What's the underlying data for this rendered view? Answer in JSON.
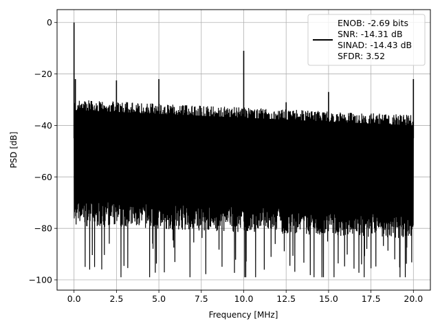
{
  "chart_data": {
    "type": "line",
    "title": "",
    "xlabel": "Frequency [MHz]",
    "ylabel": "PSD [dB]",
    "xlim": [
      -1.0,
      21.0
    ],
    "ylim": [
      -104,
      5
    ],
    "xticks": [
      0.0,
      2.5,
      5.0,
      7.5,
      10.0,
      12.5,
      15.0,
      17.5,
      20.0
    ],
    "xtick_labels": [
      "0.0",
      "2.5",
      "5.0",
      "7.5",
      "10.0",
      "12.5",
      "15.0",
      "17.5",
      "20.0"
    ],
    "yticks": [
      0,
      -20,
      -40,
      -60,
      -80,
      -100
    ],
    "ytick_labels": [
      "0",
      "−20",
      "−40",
      "−60",
      "−80",
      "−100"
    ],
    "grid": true,
    "legend": {
      "placement": "top-right",
      "lines": [
        "ENOB: -2.69 bits",
        "SNR: -14.31 dB",
        "SINAD: -14.43 dB",
        "SFDR: 3.52"
      ]
    },
    "series": [
      {
        "color": "#000000",
        "noise_floor": {
          "x_range": [
            0.0,
            20.0
          ],
          "upper_envelope_db": [
            -30,
            -36
          ],
          "lower_envelope_db": [
            -75,
            -80
          ],
          "min_db": -99
        },
        "peaks": [
          {
            "x": 0.0,
            "y": 0.0
          },
          {
            "x": 0.08,
            "y": -22.0
          },
          {
            "x": 2.5,
            "y": -22.5
          },
          {
            "x": 5.0,
            "y": -22.0
          },
          {
            "x": 10.0,
            "y": -11.0
          },
          {
            "x": 12.5,
            "y": -31.0
          },
          {
            "x": 15.0,
            "y": -27.0
          },
          {
            "x": 20.0,
            "y": -22.0
          }
        ]
      }
    ]
  }
}
